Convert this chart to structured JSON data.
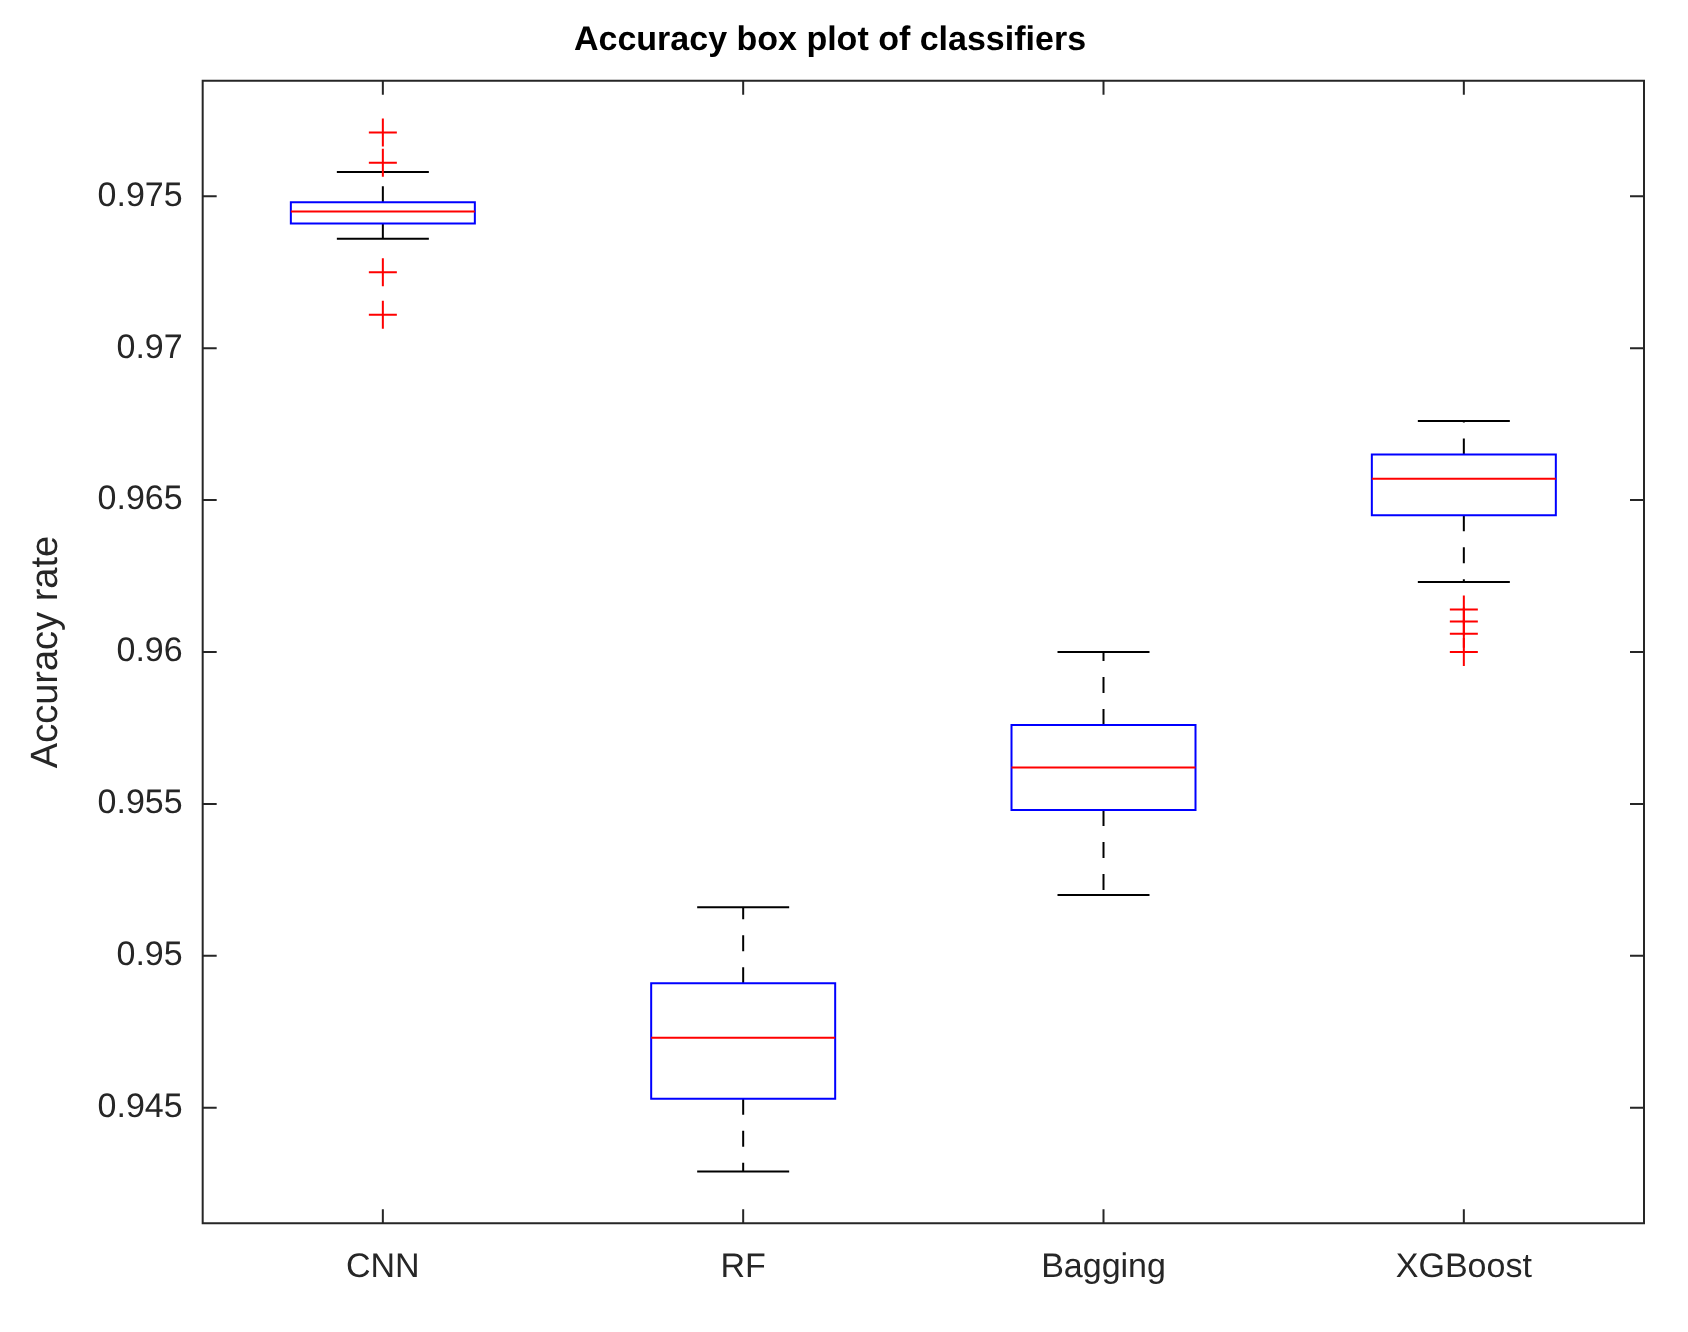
{
  "chart_data": {
    "type": "box",
    "title": "Accuracy box plot of classifiers",
    "ylabel": "Accuracy rate",
    "categories": [
      "CNN",
      "RF",
      "Bagging",
      "XGBoost"
    ],
    "ylim": [
      0.9412,
      0.9788
    ],
    "yticks": [
      0.945,
      0.95,
      0.955,
      0.96,
      0.965,
      0.97,
      0.975
    ],
    "boxes": [
      {
        "low": 0.9736,
        "q1": 0.9741,
        "median": 0.9745,
        "q3": 0.9748,
        "high": 0.9758,
        "outliers": [
          0.9771,
          0.9761,
          0.9725,
          0.9711
        ]
      },
      {
        "low": 0.9429,
        "q1": 0.9453,
        "median": 0.9473,
        "q3": 0.9491,
        "high": 0.9516
      },
      {
        "low": 0.952,
        "q1": 0.9548,
        "median": 0.9562,
        "q3": 0.9576,
        "high": 0.96
      },
      {
        "low": 0.9623,
        "q1": 0.9645,
        "median": 0.9657,
        "q3": 0.9665,
        "high": 0.9676,
        "outliers": [
          0.9614,
          0.961,
          0.9606,
          0.96
        ]
      }
    ]
  }
}
